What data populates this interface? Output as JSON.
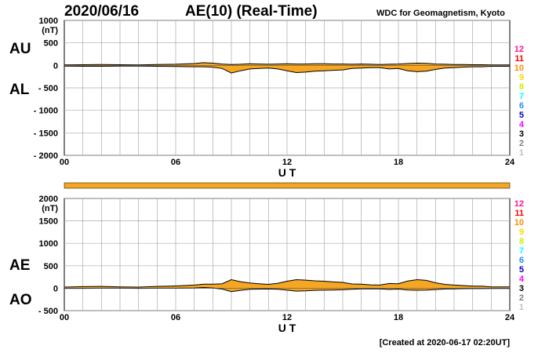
{
  "header": {
    "date": "2020/06/16",
    "title": "AE(10) (Real-Time)",
    "source": "WDC for Geomagnetism, Kyoto"
  },
  "footer": {
    "created": "[Created at 2020-06-17 02:20UT]"
  },
  "panel_labels": {
    "au": "AU",
    "al": "AL",
    "ae": "AE",
    "ao": "AO"
  },
  "station_count_legend": [
    "12",
    "11",
    "10",
    "9",
    "8",
    "7",
    "6",
    "5",
    "4",
    "3",
    "2",
    "1"
  ],
  "station_count_colors": [
    "#ff1493",
    "#ff0000",
    "#ff8c00",
    "#ffd700",
    "#c8f000",
    "#00ffff",
    "#1e90ff",
    "#0000cd",
    "#ff00ff",
    "#000000",
    "#808080",
    "#c0c0c0"
  ],
  "colors": {
    "fill": "#f5a623",
    "highlight": "#ffd700",
    "outline": "#000000",
    "grid": "#aaaaaa",
    "bar": "#f5a623"
  },
  "chart_data": [
    {
      "type": "area",
      "ylabel": "(nT)",
      "xlabel": "U T",
      "xlim": [
        0,
        24
      ],
      "ylim": [
        -2000,
        1000
      ],
      "yticks": [
        "1000",
        "500",
        "0",
        "- 500",
        "- 1000",
        "- 1500",
        "- 2000"
      ],
      "xticks": [
        "00",
        "06",
        "12",
        "18",
        "24"
      ],
      "series": [
        {
          "name": "AU",
          "x": [
            0,
            1,
            2,
            3,
            4,
            5,
            6,
            7,
            7.5,
            8,
            8.5,
            9,
            9.5,
            10,
            10.5,
            11,
            11.5,
            12,
            12.5,
            13,
            13.5,
            14,
            14.5,
            15,
            15.5,
            16,
            16.5,
            17,
            17.5,
            18,
            18.5,
            19,
            19.5,
            20,
            20.5,
            21,
            21.5,
            22,
            22.5,
            23,
            23.5,
            24
          ],
          "values": [
            10,
            15,
            20,
            15,
            10,
            20,
            25,
            40,
            60,
            50,
            30,
            20,
            25,
            35,
            30,
            25,
            30,
            35,
            30,
            30,
            35,
            35,
            30,
            30,
            25,
            30,
            25,
            20,
            25,
            30,
            40,
            50,
            45,
            30,
            25,
            20,
            20,
            15,
            15,
            10,
            10,
            10
          ]
        },
        {
          "name": "AL",
          "x": [
            0,
            1,
            2,
            3,
            4,
            5,
            6,
            7,
            7.5,
            8,
            8.5,
            9,
            9.5,
            10,
            10.5,
            11,
            11.5,
            12,
            12.5,
            13,
            13.5,
            14,
            14.5,
            15,
            15.5,
            16,
            16.5,
            17,
            17.5,
            18,
            18.5,
            19,
            19.5,
            20,
            20.5,
            21,
            21.5,
            22,
            22.5,
            23,
            23.5,
            24
          ],
          "values": [
            -15,
            -20,
            -20,
            -15,
            -15,
            -20,
            -25,
            -30,
            -30,
            -40,
            -70,
            -170,
            -120,
            -80,
            -70,
            -60,
            -80,
            -120,
            -160,
            -150,
            -130,
            -120,
            -110,
            -100,
            -70,
            -60,
            -50,
            -50,
            -80,
            -70,
            -120,
            -140,
            -130,
            -90,
            -60,
            -50,
            -40,
            -30,
            -30,
            -20,
            -20,
            -20
          ]
        }
      ]
    },
    {
      "type": "area",
      "ylabel": "(nT)",
      "xlabel": "U T",
      "xlim": [
        0,
        24
      ],
      "ylim": [
        -500,
        2000
      ],
      "yticks": [
        "2000",
        "1500",
        "1000",
        "500",
        "0",
        "- 500"
      ],
      "xticks": [
        "00",
        "06",
        "12",
        "18",
        "24"
      ],
      "series": [
        {
          "name": "AE",
          "x": [
            0,
            1,
            2,
            3,
            4,
            5,
            6,
            7,
            7.5,
            8,
            8.5,
            9,
            9.5,
            10,
            10.5,
            11,
            11.5,
            12,
            12.5,
            13,
            13.5,
            14,
            14.5,
            15,
            15.5,
            16,
            16.5,
            17,
            17.5,
            18,
            18.5,
            19,
            19.5,
            20,
            20.5,
            21,
            21.5,
            22,
            22.5,
            23,
            23.5,
            24
          ],
          "values": [
            25,
            35,
            40,
            30,
            25,
            40,
            50,
            70,
            90,
            90,
            100,
            190,
            145,
            115,
            100,
            85,
            110,
            155,
            190,
            180,
            165,
            155,
            140,
            130,
            95,
            90,
            75,
            70,
            105,
            100,
            160,
            190,
            175,
            120,
            85,
            70,
            60,
            45,
            45,
            30,
            30,
            30
          ]
        },
        {
          "name": "AO",
          "x": [
            0,
            1,
            2,
            3,
            4,
            5,
            6,
            7,
            7.5,
            8,
            8.5,
            9,
            9.5,
            10,
            10.5,
            11,
            11.5,
            12,
            12.5,
            13,
            13.5,
            14,
            14.5,
            15,
            15.5,
            16,
            16.5,
            17,
            17.5,
            18,
            18.5,
            19,
            19.5,
            20,
            20.5,
            21,
            21.5,
            22,
            22.5,
            23,
            23.5,
            24
          ],
          "values": [
            -3,
            -3,
            0,
            0,
            -3,
            0,
            0,
            5,
            15,
            5,
            -20,
            -75,
            -48,
            -23,
            -20,
            -18,
            -25,
            -43,
            -65,
            -60,
            -48,
            -43,
            -40,
            -35,
            -23,
            -15,
            -13,
            -15,
            -28,
            -20,
            -40,
            -45,
            -43,
            -30,
            -18,
            -15,
            -10,
            -8,
            -8,
            -5,
            -5,
            -5
          ]
        }
      ]
    }
  ]
}
